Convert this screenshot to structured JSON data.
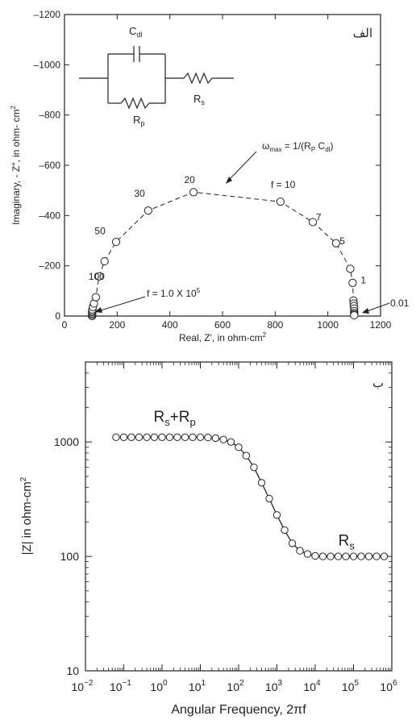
{
  "chart_data": [
    {
      "type": "scatter",
      "panel_tag": "الف",
      "xlabel": "Real, Z', in ohm-cm",
      "xlabel_sup": "2",
      "ylabel": "Imaginary, - Z\", in ohm- cm",
      "ylabel_sup": "2",
      "xlim": [
        0,
        1200
      ],
      "ylim": [
        0,
        -1200
      ],
      "x_ticks": [
        0,
        200,
        400,
        600,
        800,
        1000,
        1200
      ],
      "x_tick_labels": [
        "0",
        "200",
        "400",
        "600",
        "800",
        "1000",
        "1200"
      ],
      "y_ticks": [
        0,
        -200,
        -400,
        -600,
        -800,
        -1000,
        -1200
      ],
      "y_tick_labels": [
        "0",
        "–200",
        "–400",
        "–600",
        "–800",
        "–1000",
        "–1200"
      ],
      "grid": false,
      "series": [
        {
          "x": [
            105,
            105,
            105,
            105,
            105,
            106,
            108,
            112,
            119,
            131,
            152,
            196,
            318,
            490,
            820,
            943,
            1031,
            1085,
            1094,
            1097,
            1098,
            1099,
            1100,
            1100,
            1100,
            1100,
            1100
          ],
          "y": [
            0,
            -5,
            -10,
            -15,
            -20,
            -26,
            -36,
            -50,
            -75,
            -158,
            -218,
            -295,
            -420,
            -493,
            -455,
            -374,
            -290,
            -188,
            -132,
            -62,
            -50,
            -40,
            -30,
            -20,
            -12,
            -7,
            -3
          ]
        }
      ],
      "point_labels": [
        {
          "text": "20",
          "x": 475,
          "y": -530
        },
        {
          "text": "30",
          "x": 285,
          "y": -475
        },
        {
          "text": "50",
          "x": 135,
          "y": -325
        },
        {
          "text": "100",
          "x": 122,
          "y": -145
        },
        {
          "text": "f = 10",
          "x": 830,
          "y": -510
        },
        {
          "text": "7",
          "x": 965,
          "y": -380
        },
        {
          "text": "5",
          "x": 1055,
          "y": -285
        },
        {
          "text": "1",
          "x": 1135,
          "y": -130
        }
      ],
      "annotation_freq_low": {
        "text": "f = 1.0 X 10",
        "sup": "5"
      },
      "annotation_freq_high": {
        "text": "0.01"
      },
      "annotation_omega": {
        "omega": "ω",
        "omega_sub": "max",
        "text_a": " = 1/(R",
        "sub_p": "P",
        "text_b": " C",
        "sub_dl": "dl",
        "text_c": ")"
      },
      "circuit": {
        "cap_label": "C",
        "cap_sub": "dl",
        "rp_label": "R",
        "rp_sub": "p",
        "rs_label": "R",
        "rs_sub": "s"
      }
    },
    {
      "type": "scatter",
      "panel_tag": "ب",
      "xlabel": "Angular Frequency, 2πf",
      "ylabel": "|Z| in ohm-cm",
      "ylabel_sup": "2",
      "x_scale": "log",
      "y_scale": "log",
      "xlim": [
        0.01,
        1000000
      ],
      "ylim": [
        10,
        5000
      ],
      "x_ticks": [
        0.01,
        0.1,
        1,
        10,
        100,
        1000,
        10000,
        100000,
        1000000
      ],
      "x_tick_labels": [
        {
          "base": "10",
          "exp": "−2"
        },
        {
          "base": "10",
          "exp": "−1"
        },
        {
          "base": "10",
          "exp": "0"
        },
        {
          "base": "10",
          "exp": "1"
        },
        {
          "base": "10",
          "exp": "2"
        },
        {
          "base": "10",
          "exp": "3"
        },
        {
          "base": "10",
          "exp": "4"
        },
        {
          "base": "10",
          "exp": "5"
        },
        {
          "base": "10",
          "exp": "6"
        }
      ],
      "y_ticks": [
        10,
        100,
        1000
      ],
      "y_tick_labels": [
        "10",
        "100",
        "1000"
      ],
      "grid": false,
      "series": [
        {
          "x": [
            0.063,
            0.1,
            0.158,
            0.25,
            0.4,
            0.63,
            1,
            1.58,
            2.5,
            4,
            6.3,
            10,
            15.8,
            25,
            40,
            63,
            100,
            158,
            251,
            398,
            631,
            1000,
            1585,
            2512,
            3981,
            6310,
            10000,
            15849,
            25119,
            39811,
            63096,
            100000,
            158489,
            251189,
            398107,
            630957
          ],
          "y": [
            1100,
            1100,
            1100,
            1100,
            1100,
            1100,
            1100,
            1100,
            1100,
            1100,
            1100,
            1100,
            1095,
            1080,
            1050,
            1000,
            900,
            760,
            600,
            440,
            320,
            230,
            170,
            130,
            112,
            105,
            101,
            100,
            100,
            100,
            100,
            100,
            100,
            100,
            100,
            100
          ]
        }
      ],
      "annotations": [
        {
          "text": "R",
          "sub": "s",
          "mid": "+R",
          "sub2": "p",
          "x": 0.6,
          "y": 1500
        },
        {
          "text": "R",
          "sub": "s",
          "x": 40000,
          "y": 125
        }
      ]
    }
  ]
}
